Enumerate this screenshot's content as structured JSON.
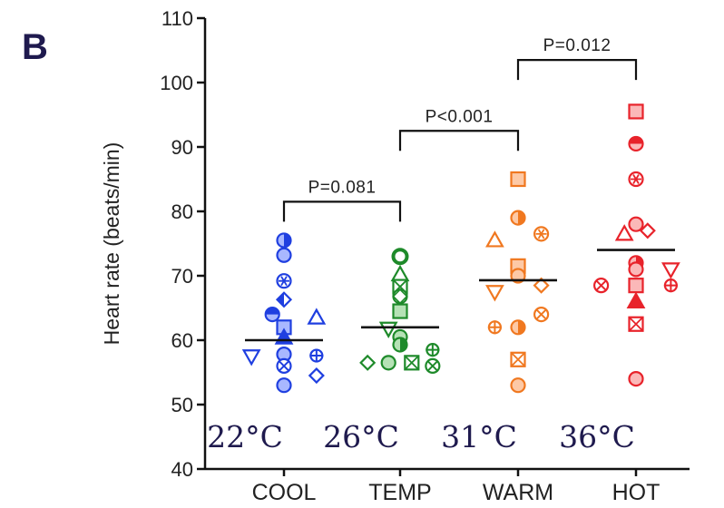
{
  "panel_label": "B",
  "chart_data": {
    "type": "scatter",
    "ylabel": "Heart rate (beats/min)",
    "ylim": [
      40,
      110
    ],
    "yticks": [
      40,
      50,
      60,
      70,
      80,
      90,
      100,
      110
    ],
    "categories": [
      "COOL",
      "TEMP",
      "WARM",
      "HOT"
    ],
    "temperatures": [
      "22°C",
      "26°C",
      "31°C",
      "36°C"
    ],
    "colors": [
      "#1f3fe0",
      "#1e8a2a",
      "#f07820",
      "#e8232b"
    ],
    "means": [
      60,
      62,
      69.3,
      74
    ],
    "points": [
      [
        {
          "dx": 0,
          "y": 75.5,
          "m": "half-circle"
        },
        {
          "dx": 0,
          "y": 73.2,
          "m": "circle"
        },
        {
          "dx": 0,
          "y": 69.2,
          "m": "star-circle"
        },
        {
          "dx": 0,
          "y": 66.3,
          "m": "diamond-half"
        },
        {
          "dx": -0.1,
          "y": 64,
          "m": "half-circle-v"
        },
        {
          "dx": 0,
          "y": 62,
          "m": "square"
        },
        {
          "dx": 0,
          "y": 60.4,
          "m": "triangle-fill"
        },
        {
          "dx": -0.28,
          "y": 57.5,
          "m": "triangle-down"
        },
        {
          "dx": 0,
          "y": 57.8,
          "m": "circle"
        },
        {
          "dx": 0,
          "y": 56,
          "m": "circle-x"
        },
        {
          "dx": 0,
          "y": 53,
          "m": "circle"
        },
        {
          "dx": 0.28,
          "y": 63.5,
          "m": "triangle"
        },
        {
          "dx": 0.28,
          "y": 57.6,
          "m": "plus-circle"
        },
        {
          "dx": 0.28,
          "y": 54.5,
          "m": "diamond"
        }
      ],
      [
        {
          "dx": 0,
          "y": 73,
          "m": "ring"
        },
        {
          "dx": 0,
          "y": 70.2,
          "m": "triangle"
        },
        {
          "dx": 0,
          "y": 68.3,
          "m": "square-x"
        },
        {
          "dx": 0,
          "y": 66.8,
          "m": "diamond-circle"
        },
        {
          "dx": 0,
          "y": 64.5,
          "m": "square"
        },
        {
          "dx": -0.1,
          "y": 61.8,
          "m": "triangle-down"
        },
        {
          "dx": 0,
          "y": 60.5,
          "m": "circle"
        },
        {
          "dx": 0,
          "y": 59.3,
          "m": "half-circle"
        },
        {
          "dx": -0.28,
          "y": 56.5,
          "m": "diamond"
        },
        {
          "dx": -0.1,
          "y": 56.5,
          "m": "circle"
        },
        {
          "dx": 0.1,
          "y": 56.5,
          "m": "square-x"
        },
        {
          "dx": 0.28,
          "y": 58.5,
          "m": "plus-circle"
        },
        {
          "dx": 0.28,
          "y": 56,
          "m": "circle-x"
        }
      ],
      [
        {
          "dx": 0,
          "y": 85,
          "m": "square"
        },
        {
          "dx": 0,
          "y": 79,
          "m": "half-circle"
        },
        {
          "dx": 0.2,
          "y": 76.5,
          "m": "star-circle"
        },
        {
          "dx": -0.2,
          "y": 75.5,
          "m": "triangle"
        },
        {
          "dx": 0,
          "y": 71.5,
          "m": "square"
        },
        {
          "dx": 0,
          "y": 70,
          "m": "circle"
        },
        {
          "dx": -0.2,
          "y": 67.5,
          "m": "triangle-down"
        },
        {
          "dx": 0.2,
          "y": 68.5,
          "m": "diamond"
        },
        {
          "dx": 0.2,
          "y": 64,
          "m": "circle-x"
        },
        {
          "dx": -0.2,
          "y": 62,
          "m": "plus-circle"
        },
        {
          "dx": 0,
          "y": 62,
          "m": "half-circle"
        },
        {
          "dx": 0,
          "y": 57,
          "m": "square-x"
        },
        {
          "dx": 0,
          "y": 53,
          "m": "circle"
        }
      ],
      [
        {
          "dx": 0,
          "y": 95.5,
          "m": "square"
        },
        {
          "dx": 0,
          "y": 90.5,
          "m": "half-circle-v"
        },
        {
          "dx": 0,
          "y": 85,
          "m": "star-circle"
        },
        {
          "dx": 0,
          "y": 78,
          "m": "circle"
        },
        {
          "dx": -0.1,
          "y": 76.5,
          "m": "triangle"
        },
        {
          "dx": 0.1,
          "y": 77,
          "m": "diamond"
        },
        {
          "dx": 0,
          "y": 72,
          "m": "half-circle"
        },
        {
          "dx": 0,
          "y": 71,
          "m": "circle"
        },
        {
          "dx": -0.3,
          "y": 68.5,
          "m": "circle-x"
        },
        {
          "dx": 0.3,
          "y": 71,
          "m": "triangle-down"
        },
        {
          "dx": 0,
          "y": 68.5,
          "m": "square"
        },
        {
          "dx": 0.3,
          "y": 68.5,
          "m": "plus-circle"
        },
        {
          "dx": 0,
          "y": 66,
          "m": "triangle-fill"
        },
        {
          "dx": 0,
          "y": 62.5,
          "m": "square-x"
        },
        {
          "dx": 0,
          "y": 54,
          "m": "circle"
        }
      ]
    ],
    "comparisons": [
      {
        "from": 0,
        "to": 1,
        "label": "P=0.081",
        "y": 81.5
      },
      {
        "from": 1,
        "to": 2,
        "label": "P<0.001",
        "y": 92.5
      },
      {
        "from": 2,
        "to": 3,
        "label": "P=0.012",
        "y": 103.5
      }
    ]
  }
}
